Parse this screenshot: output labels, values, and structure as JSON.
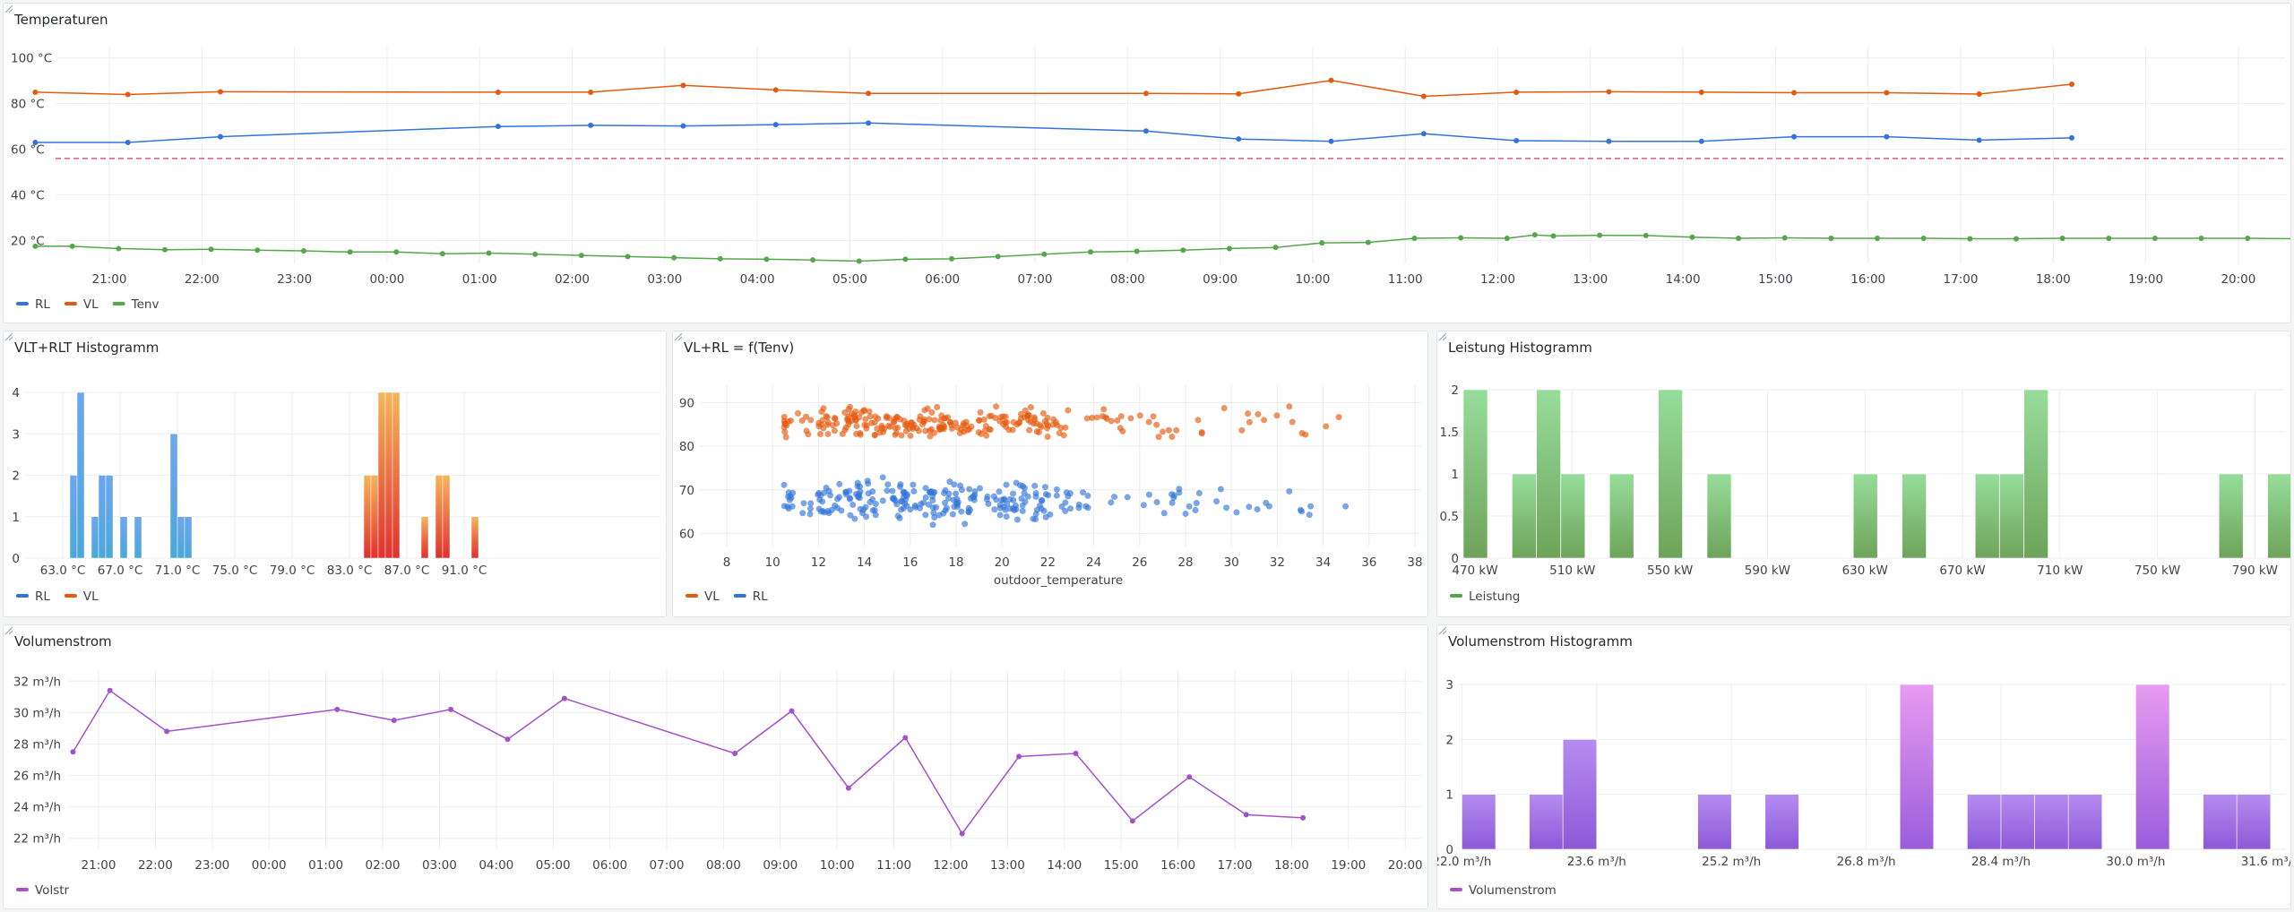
{
  "panels": {
    "temps": {
      "title": "Temperaturen"
    },
    "vlt_hist": {
      "title": "VLT+RLT Histogramm"
    },
    "scatter": {
      "title": "VL+RL = f(Tenv)"
    },
    "power_hist": {
      "title": "Leistung Histogramm"
    },
    "flow": {
      "title": "Volumenstrom"
    },
    "flow_hist": {
      "title": "Volumenstrom Histogramm"
    }
  },
  "colors": {
    "blue": "#3274d9",
    "orange": "#e55a0f",
    "green": "#56a64b",
    "purple": "#a352cc",
    "threshold": "#e0566f"
  },
  "chart_data": [
    {
      "id": "temps",
      "type": "line",
      "title": "Temperaturen",
      "y_ticks": [
        "20 °C",
        "40 °C",
        "60 °C",
        "80 °C",
        "100 °C"
      ],
      "ylim": [
        10,
        105
      ],
      "x_ticks": [
        "21:00",
        "22:00",
        "23:00",
        "00:00",
        "01:00",
        "02:00",
        "03:00",
        "04:00",
        "05:00",
        "06:00",
        "07:00",
        "08:00",
        "09:00",
        "10:00",
        "11:00",
        "12:00",
        "13:00",
        "14:00",
        "15:00",
        "16:00",
        "17:00",
        "18:00",
        "19:00",
        "20:00"
      ],
      "threshold": 56,
      "series": [
        {
          "name": "RL",
          "color": "#3274d9",
          "points": [
            [
              20.2,
              63
            ],
            [
              21.2,
              63
            ],
            [
              22.2,
              65.5
            ],
            [
              25.2,
              70
            ],
            [
              26.2,
              70.5
            ],
            [
              27.2,
              70.2
            ],
            [
              28.2,
              70.8
            ],
            [
              29.2,
              71.5
            ],
            [
              32.2,
              68
            ],
            [
              33.2,
              64.5
            ],
            [
              34.2,
              63.5
            ],
            [
              35.2,
              66.8
            ],
            [
              36.2,
              63.8
            ],
            [
              37.2,
              63.5
            ],
            [
              38.2,
              63.5
            ],
            [
              39.2,
              65.5
            ],
            [
              40.2,
              65.5
            ],
            [
              41.2,
              64
            ],
            [
              42.2,
              65
            ]
          ]
        },
        {
          "name": "VL",
          "color": "#e55a0f",
          "points": [
            [
              20.2,
              85
            ],
            [
              21.2,
              84
            ],
            [
              22.2,
              85.2
            ],
            [
              25.2,
              85
            ],
            [
              26.2,
              85
            ],
            [
              27.2,
              88
            ],
            [
              28.2,
              86
            ],
            [
              29.2,
              84.5
            ],
            [
              32.2,
              84.5
            ],
            [
              33.2,
              84.3
            ],
            [
              34.2,
              90.2
            ],
            [
              35.2,
              83.2
            ],
            [
              36.2,
              85
            ],
            [
              37.2,
              85.2
            ],
            [
              38.2,
              85
            ],
            [
              39.2,
              84.8
            ],
            [
              40.2,
              84.8
            ],
            [
              41.2,
              84.2
            ],
            [
              42.2,
              88.5
            ]
          ]
        },
        {
          "name": "Tenv",
          "color": "#56a64b",
          "points": [
            [
              20.2,
              17.5
            ],
            [
              20.6,
              17.5
            ],
            [
              21.1,
              16.5
            ],
            [
              21.6,
              16
            ],
            [
              22.1,
              16.2
            ],
            [
              22.6,
              15.8
            ],
            [
              23.1,
              15.5
            ],
            [
              23.6,
              15
            ],
            [
              24.1,
              15
            ],
            [
              24.6,
              14.2
            ],
            [
              25.1,
              14.5
            ],
            [
              25.6,
              14
            ],
            [
              26.1,
              13.5
            ],
            [
              26.6,
              13
            ],
            [
              27.1,
              12.5
            ],
            [
              27.6,
              12
            ],
            [
              28.1,
              11.8
            ],
            [
              28.6,
              11.5
            ],
            [
              29.1,
              11
            ],
            [
              29.6,
              11.8
            ],
            [
              30.1,
              12
            ],
            [
              30.6,
              13
            ],
            [
              31.1,
              14
            ],
            [
              31.6,
              15
            ],
            [
              32.1,
              15.3
            ],
            [
              32.6,
              15.8
            ],
            [
              33.1,
              16.5
            ],
            [
              33.6,
              17
            ],
            [
              34.1,
              19
            ],
            [
              34.6,
              19.2
            ],
            [
              35.1,
              21
            ],
            [
              35.6,
              21.2
            ],
            [
              36.1,
              21
            ],
            [
              36.4,
              22.5
            ],
            [
              36.6,
              22
            ],
            [
              37.1,
              22.3
            ],
            [
              37.6,
              22.2
            ],
            [
              38.1,
              21.5
            ],
            [
              38.6,
              21
            ],
            [
              39.1,
              21.2
            ],
            [
              39.6,
              21
            ],
            [
              40.1,
              21
            ],
            [
              40.6,
              21
            ],
            [
              41.1,
              20.8
            ],
            [
              41.6,
              20.8
            ],
            [
              42.1,
              21
            ],
            [
              42.6,
              21
            ],
            [
              43.1,
              21
            ],
            [
              43.6,
              21
            ],
            [
              44.1,
              21
            ],
            [
              44.6,
              20.8
            ],
            [
              45.1,
              20.5
            ]
          ]
        }
      ]
    },
    {
      "id": "vlt_hist",
      "type": "bar",
      "title": "VLT+RLT Histogramm",
      "x_ticks": [
        "63.0 °C",
        "67.0 °C",
        "71.0 °C",
        "75.0 °C",
        "79.0 °C",
        "83.0 °C",
        "87.0 °C",
        "91.0 °C"
      ],
      "y_ticks": [
        "0",
        "1",
        "2",
        "3",
        "4"
      ],
      "ylim": [
        0,
        4
      ],
      "series": [
        {
          "name": "RL",
          "color": "#3274d9",
          "bins": [
            [
              63.5,
              2
            ],
            [
              64,
              4
            ],
            [
              65,
              1
            ],
            [
              65.5,
              2
            ],
            [
              66,
              2
            ],
            [
              67,
              1
            ],
            [
              68,
              1
            ],
            [
              70.5,
              3
            ],
            [
              71,
              1
            ],
            [
              71.5,
              1
            ]
          ]
        },
        {
          "name": "VL",
          "color": "#e55a0f",
          "bins": [
            [
              84,
              2
            ],
            [
              84.5,
              2
            ],
            [
              85,
              4
            ],
            [
              85.5,
              4
            ],
            [
              86,
              4
            ],
            [
              88,
              1
            ],
            [
              89,
              2
            ],
            [
              89.5,
              2
            ],
            [
              91.5,
              1
            ]
          ]
        }
      ]
    },
    {
      "id": "scatter",
      "type": "scatter",
      "title": "VL+RL = f(Tenv)",
      "xlabel": "outdoor_temperature",
      "x_ticks": [
        "8",
        "10",
        "12",
        "14",
        "16",
        "18",
        "20",
        "22",
        "24",
        "26",
        "28",
        "30",
        "32",
        "34",
        "36",
        "38"
      ],
      "y_ticks": [
        "60",
        "70",
        "80",
        "90"
      ],
      "xlim": [
        7,
        39
      ],
      "ylim": [
        57,
        94
      ],
      "series": [
        {
          "name": "VL",
          "color": "#e55a0f",
          "x_range": [
            10.5,
            35
          ],
          "y_center": 85.5,
          "y_spread": 3.5
        },
        {
          "name": "RL",
          "color": "#3274d9",
          "x_range": [
            10.5,
            35
          ],
          "y_center": 67.5,
          "y_spread": 4.5
        }
      ]
    },
    {
      "id": "power_hist",
      "type": "bar",
      "title": "Leistung Histogramm",
      "x_ticks": [
        "470 kW",
        "510 kW",
        "550 kW",
        "590 kW",
        "630 kW",
        "670 kW",
        "710 kW",
        "750 kW",
        "790 kW"
      ],
      "y_ticks": [
        "0",
        "0.5",
        "1",
        "1.5",
        "2"
      ],
      "ylim": [
        0,
        2
      ],
      "series": [
        {
          "name": "Leistung",
          "color": "#56a64b",
          "bins": [
            [
              470,
              2
            ],
            [
              490,
              1
            ],
            [
              500,
              2
            ],
            [
              510,
              1
            ],
            [
              530,
              1
            ],
            [
              550,
              2
            ],
            [
              570,
              1
            ],
            [
              630,
              1
            ],
            [
              650,
              1
            ],
            [
              680,
              1
            ],
            [
              690,
              1
            ],
            [
              700,
              2
            ],
            [
              780,
              1
            ],
            [
              800,
              1
            ]
          ]
        }
      ]
    },
    {
      "id": "flow",
      "type": "line",
      "title": "Volumenstrom",
      "y_ticks": [
        "22 m³/h",
        "24 m³/h",
        "26 m³/h",
        "28 m³/h",
        "30 m³/h",
        "32 m³/h"
      ],
      "ylim": [
        21.3,
        32.7
      ],
      "x_ticks": [
        "21:00",
        "22:00",
        "23:00",
        "00:00",
        "01:00",
        "02:00",
        "03:00",
        "04:00",
        "05:00",
        "06:00",
        "07:00",
        "08:00",
        "09:00",
        "10:00",
        "11:00",
        "12:00",
        "13:00",
        "14:00",
        "15:00",
        "16:00",
        "17:00",
        "18:00",
        "19:00",
        "20:00"
      ],
      "series": [
        {
          "name": "Volstr",
          "color": "#a352cc",
          "points": [
            [
              20.55,
              27.5
            ],
            [
              21.2,
              31.4
            ],
            [
              22.2,
              28.8
            ],
            [
              25.2,
              30.2
            ],
            [
              26.2,
              29.5
            ],
            [
              27.2,
              30.2
            ],
            [
              28.2,
              28.3
            ],
            [
              29.2,
              30.9
            ],
            [
              32.2,
              27.4
            ],
            [
              33.2,
              30.1
            ],
            [
              34.2,
              25.2
            ],
            [
              35.2,
              28.4
            ],
            [
              36.2,
              22.3
            ],
            [
              37.2,
              27.2
            ],
            [
              38.2,
              27.4
            ],
            [
              39.2,
              23.1
            ],
            [
              40.2,
              25.9
            ],
            [
              41.2,
              23.5
            ],
            [
              42.2,
              23.3
            ]
          ]
        }
      ]
    },
    {
      "id": "flow_hist",
      "type": "bar",
      "title": "Volumenstrom Histogramm",
      "x_ticks": [
        "22.0 m³/h",
        "23.6 m³/h",
        "25.2 m³/h",
        "26.8 m³/h",
        "28.4 m³/h",
        "30.0 m³/h",
        "31.6 m³/h"
      ],
      "y_ticks": [
        "0",
        "1",
        "2",
        "3"
      ],
      "ylim": [
        0,
        3
      ],
      "series": [
        {
          "name": "Volumenstrom",
          "color": "#a352cc",
          "bins": [
            [
              22.0,
              1
            ],
            [
              22.8,
              1
            ],
            [
              23.2,
              2
            ],
            [
              24.8,
              1
            ],
            [
              25.6,
              1
            ],
            [
              27.2,
              3
            ],
            [
              28.0,
              1
            ],
            [
              28.4,
              1
            ],
            [
              28.8,
              1
            ],
            [
              29.2,
              1
            ],
            [
              30.0,
              3
            ],
            [
              30.8,
              1
            ],
            [
              31.2,
              1
            ]
          ]
        }
      ]
    }
  ]
}
